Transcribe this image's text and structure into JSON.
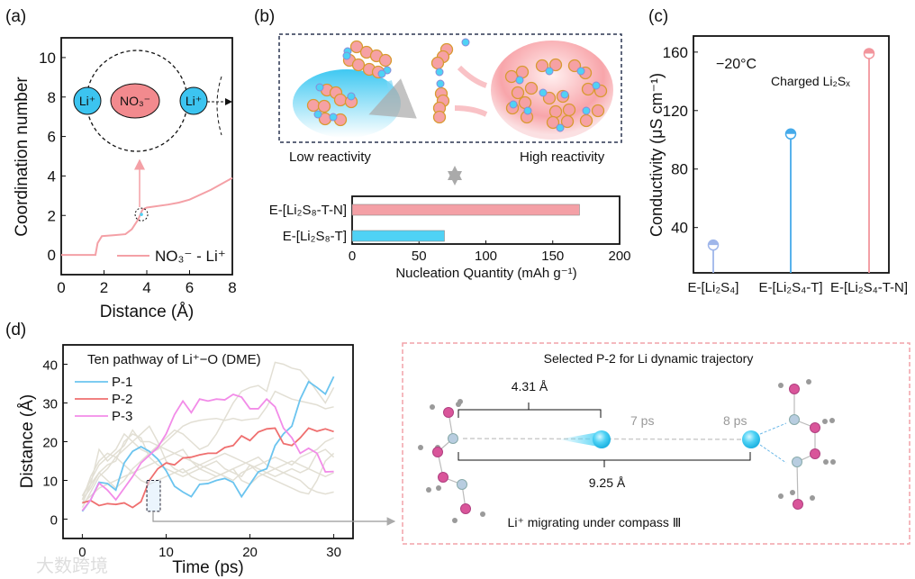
{
  "panel_labels": {
    "a": "(a)",
    "b": "(b)",
    "c": "(c)",
    "d": "(d)"
  },
  "panel_a_inset": {
    "li_left": "Li⁺",
    "anion": "NO₃⁻",
    "li_right": "Li⁺"
  },
  "panel_b_scheme": {
    "low": "Low reactivity",
    "high": "High reactivity"
  },
  "panel_c_notes": {
    "temperature": "−20°C",
    "condition": "Charged Li₂Sₓ"
  },
  "panel_d_scheme": {
    "title": "Selected P-2 for Li dynamic trajectory",
    "short_distance": "4.31 Å",
    "long_distance": "9.25 Å",
    "time_1": "7 ps",
    "time_2": "8 ps",
    "caption": "Li⁺ migrating under compass Ⅲ"
  },
  "watermark": "大数跨境",
  "colors": {
    "pink": "#f4a0a6",
    "blue": "#4fd2f5",
    "red": "#ef6f6f",
    "magenta": "#f28ce8",
    "sky": "#6bc4ef",
    "faint": "#e2dfd4"
  },
  "chart_data": [
    {
      "id": "a",
      "type": "line",
      "xlabel": "Distance (Å)",
      "ylabel": "Coordination number",
      "xlim": [
        0,
        8
      ],
      "ylim": [
        -1,
        11
      ],
      "xticks": [
        "0",
        "2",
        "4",
        "6",
        "8"
      ],
      "yticks": [
        "0",
        "2",
        "4",
        "6",
        "8",
        "10"
      ],
      "legend": "NO₃⁻ - Li⁺",
      "series": [
        {
          "name": "NO₃⁻ - Li⁺",
          "x": [
            0,
            1.6,
            1.7,
            1.9,
            2.5,
            3.0,
            3.3,
            3.6,
            3.8,
            4.0,
            5.0,
            5.5,
            6.0,
            7.0,
            8.0
          ],
          "y": [
            0,
            0,
            0.6,
            0.95,
            1.0,
            1.05,
            1.3,
            1.8,
            2.3,
            2.4,
            2.55,
            2.65,
            2.8,
            3.3,
            3.9
          ]
        }
      ],
      "highlight_point": [
        3.75,
        2.05
      ]
    },
    {
      "id": "b",
      "type": "bar",
      "orientation": "horizontal",
      "categories": [
        "E-[Li₂S₈-T-N]",
        "E-[Li₂S₈-T]"
      ],
      "values": [
        170,
        69
      ],
      "xlabel": "Nucleation Quantity (mAh g⁻¹)",
      "xlim": [
        0,
        200
      ],
      "xticks": [
        "0",
        "50",
        "100",
        "150",
        "200"
      ]
    },
    {
      "id": "c",
      "type": "scatter",
      "style": "lollipop",
      "categories": [
        "E-[Li₂S₄]",
        "E-[Li₂S₄-T]",
        "E-[Li₂S₄-T-N]"
      ],
      "values": [
        28,
        104,
        159
      ],
      "ylabel": "Conductivity (μS cm⁻¹)",
      "ylim": [
        9,
        171
      ],
      "yticks": [
        "40",
        "80",
        "120",
        "160"
      ]
    },
    {
      "id": "d",
      "type": "line",
      "title": "Ten pathway of Li⁺−O (DME)",
      "xlabel": "Time (ps)",
      "ylabel": "Distance (Å)",
      "xlim": [
        -2.3,
        32.3
      ],
      "ylim": [
        -5,
        45
      ],
      "xticks": [
        "0",
        "10",
        "20",
        "30"
      ],
      "yticks": [
        "0",
        "10",
        "20",
        "30",
        "40"
      ],
      "legend_position": "top-left",
      "x": [
        0,
        1,
        2,
        3,
        4,
        5,
        6,
        7,
        8,
        9,
        10,
        11,
        12,
        13,
        14,
        15,
        16,
        17,
        18,
        19,
        20,
        21,
        22,
        23,
        24,
        25,
        26,
        27,
        28,
        29,
        30
      ],
      "series": [
        {
          "name": "P-1",
          "values": [
            2,
            5,
            9.5,
            9.2,
            7.5,
            14.5,
            17.5,
            18.7,
            17.5,
            15.5,
            12.5,
            8.5,
            7,
            5.8,
            9,
            9.2,
            10,
            10.5,
            9.5,
            5.8,
            9,
            12.2,
            13,
            19,
            22,
            24,
            31,
            35.5,
            34,
            32.3,
            36.8
          ]
        },
        {
          "name": "P-2",
          "values": [
            4.2,
            4.8,
            3.5,
            4,
            3.8,
            4.2,
            3,
            4.5,
            10,
            13,
            14.5,
            14,
            15.8,
            16,
            16.6,
            17,
            17,
            18.5,
            19,
            21.5,
            20.3,
            22.5,
            23.3,
            23.5,
            19.5,
            19,
            21,
            23.5,
            22.7,
            23.3,
            22.6
          ]
        },
        {
          "name": "P-3",
          "values": [
            2.2,
            5,
            9.3,
            7.5,
            5,
            8,
            11,
            14.5,
            16.5,
            18.5,
            22,
            27,
            30.5,
            27.5,
            31,
            30.5,
            31,
            30.8,
            32.2,
            31.5,
            28.5,
            28.5,
            31,
            29,
            23.5,
            21,
            17,
            18.3,
            17,
            12.2,
            12.3
          ]
        }
      ],
      "other_pathways": [
        [
          6,
          10,
          14,
          16,
          18,
          22,
          20,
          18,
          17,
          18,
          20,
          22,
          24,
          25,
          25.5,
          25.8,
          26,
          25.5,
          26,
          25.5,
          25.8,
          26,
          29,
          33,
          32,
          31,
          30.5,
          30,
          29.5,
          28.5,
          29
        ],
        [
          5,
          8,
          12,
          10,
          8,
          10,
          13,
          15,
          17,
          19,
          21,
          23,
          22,
          20,
          18,
          19,
          22,
          26,
          30,
          33,
          34,
          34.5,
          33,
          40.5,
          40,
          39,
          38.5,
          36,
          33,
          30,
          34
        ],
        [
          4,
          9,
          18,
          15,
          17,
          19,
          23,
          20,
          20,
          19,
          18,
          17,
          16,
          15,
          14,
          13,
          12,
          11,
          10,
          12,
          13,
          14,
          15,
          16,
          15,
          14,
          16,
          17,
          18,
          20,
          21
        ],
        [
          3,
          7,
          11,
          13,
          16,
          14,
          12,
          13,
          14,
          15,
          16,
          17,
          18,
          15,
          13,
          12,
          11,
          12,
          13,
          14,
          15,
          16,
          14,
          13,
          12,
          11,
          10,
          8,
          7,
          6.5,
          7
        ],
        [
          6,
          9,
          12,
          14,
          15,
          20,
          22,
          21,
          16,
          14,
          13,
          12,
          11,
          12,
          13,
          14,
          15,
          13,
          12,
          11,
          14,
          12,
          11,
          10,
          9,
          8,
          7,
          6.5,
          10,
          15,
          17
        ],
        [
          5,
          11,
          15,
          17,
          16,
          18,
          20,
          22,
          24,
          20,
          15,
          13,
          12,
          13,
          14,
          15,
          16,
          17,
          16,
          15,
          14,
          13,
          12,
          11,
          12,
          13,
          12,
          13,
          17,
          18,
          16
        ],
        [
          4,
          6,
          8,
          9,
          10,
          11,
          12,
          10,
          9,
          10,
          11,
          12,
          13,
          11,
          10,
          10,
          11,
          12,
          13,
          10,
          9,
          11,
          12,
          13,
          14,
          15,
          14,
          13,
          12,
          11,
          12
        ]
      ],
      "selection_window": {
        "x": [
          7.7,
          9.3
        ],
        "y": [
          2,
          10
        ]
      }
    }
  ]
}
